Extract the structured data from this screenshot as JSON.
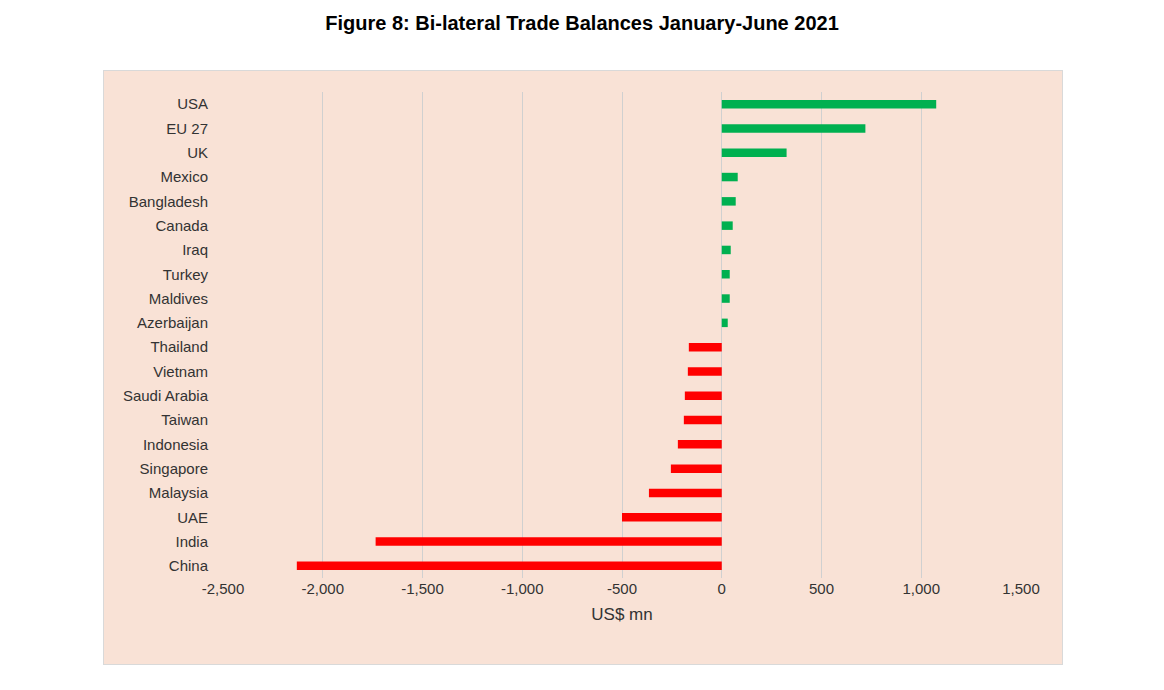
{
  "chart_data": {
    "type": "bar",
    "orientation": "horizontal",
    "title": "Figure 8: Bi-lateral Trade Balances January-June 2021",
    "x_label": "US$ mn",
    "categories": [
      "USA",
      "EU 27",
      "UK",
      "Mexico",
      "Bangladesh",
      "Canada",
      "Iraq",
      "Turkey",
      "Maldives",
      "Azerbaijan",
      "Thailand",
      "Vietnam",
      "Saudi Arabia",
      "Taiwan",
      "Indonesia",
      "Singapore",
      "Malaysia",
      "UAE",
      "India",
      "China"
    ],
    "values": [
      1075,
      720,
      325,
      80,
      70,
      55,
      45,
      40,
      40,
      30,
      -165,
      -170,
      -185,
      -190,
      -220,
      -255,
      -365,
      -500,
      -1735,
      -2130
    ],
    "colors": [
      "#00b050",
      "#00b050",
      "#00b050",
      "#00b050",
      "#00b050",
      "#00b050",
      "#00b050",
      "#00b050",
      "#00b050",
      "#00b050",
      "#ff0000",
      "#ff0000",
      "#ff0000",
      "#ff0000",
      "#ff0000",
      "#ff0000",
      "#ff0000",
      "#ff0000",
      "#ff0000",
      "#ff0000"
    ],
    "xlim": [
      -2500,
      1500
    ],
    "xticks": [
      {
        "value": -2500,
        "label": "-2,500"
      },
      {
        "value": -2000,
        "label": "-2,000"
      },
      {
        "value": -1500,
        "label": "-1,500"
      },
      {
        "value": -1000,
        "label": "-1,000"
      },
      -500,
      0,
      500,
      {
        "value": 1000,
        "label": "1,000"
      },
      {
        "value": 1500,
        "label": "1,500"
      }
    ],
    "grid": true
  }
}
